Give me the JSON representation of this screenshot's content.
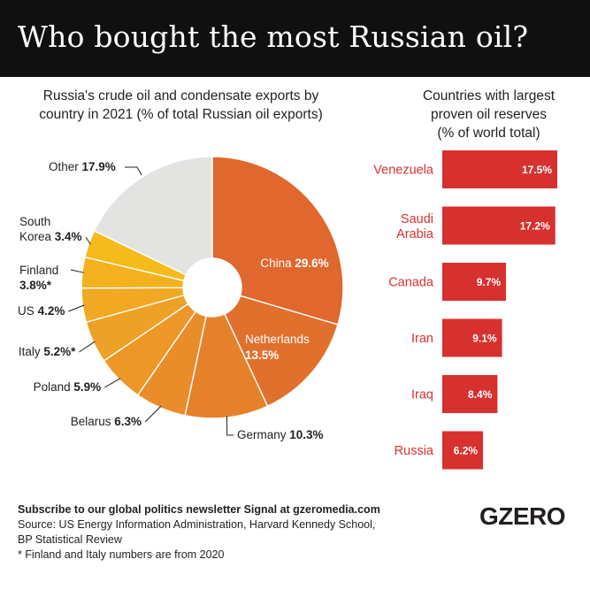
{
  "title": "Who bought the most Russian oil?",
  "pie_subtitle_line1": "Russia's crude oil and condensate exports by",
  "pie_subtitle_line2": "country in 2021 (% of total Russian oil exports)",
  "bar_subtitle_line1": "Countries with largest",
  "bar_subtitle_line2": "proven oil reserves",
  "bar_subtitle_line3": "(% of world total)",
  "footer": {
    "subscribe": "Subscribe to our global politics newsletter Signal at gzeromedia.com",
    "source_line1": "Source: US Energy Information Administration, Harvard Kennedy School,",
    "source_line2": "BP Statistical Review",
    "note": "* Finland and Italy numbers are from 2020"
  },
  "logo": "GZERO",
  "colors": {
    "bar": "#d7312f",
    "bar_label": "#d7312f",
    "other": "#e3e3e1",
    "header_bg": "#101010"
  },
  "chart_data": [
    {
      "type": "pie",
      "donut": true,
      "title": "Russia's crude oil and condensate exports by country in 2021 (% of total Russian oil exports)",
      "slices": [
        {
          "name": "China",
          "value": 29.6,
          "value_label": "29.6%",
          "color": "#e0672d"
        },
        {
          "name": "Netherlands",
          "value": 13.5,
          "value_label": "13.5%",
          "color": "#e1702c"
        },
        {
          "name": "Germany",
          "value": 10.3,
          "value_label": "10.3%",
          "color": "#e6812b"
        },
        {
          "name": "Belarus",
          "value": 6.3,
          "value_label": "6.3%",
          "color": "#e98c2a"
        },
        {
          "name": "Poland",
          "value": 5.9,
          "value_label": "5.9%",
          "color": "#ec9728"
        },
        {
          "name": "Italy",
          "value": 5.2,
          "value_label": "5.2%*",
          "color": "#eea127"
        },
        {
          "name": "US",
          "value": 4.2,
          "value_label": "4.2%",
          "color": "#f1a923"
        },
        {
          "name": "Finland",
          "value": 3.8,
          "value_label": "3.8%*",
          "color": "#f3b11f"
        },
        {
          "name": "South Korea",
          "value": 3.4,
          "value_label": "3.4%",
          "color": "#f5bb1c"
        },
        {
          "name": "Other",
          "value": 17.9,
          "value_label": "17.9%",
          "color": "#e3e3e1"
        }
      ]
    },
    {
      "type": "bar",
      "orientation": "horizontal",
      "title": "Countries with largest proven oil reserves (% of world total)",
      "categories": [
        "Venezuela",
        "Saudi Arabia",
        "Canada",
        "Iran",
        "Iraq",
        "Russia"
      ],
      "values": [
        17.5,
        17.2,
        9.7,
        9.1,
        8.4,
        6.2
      ],
      "value_labels": [
        "17.5%",
        "17.2%",
        "9.7%",
        "9.1%",
        "8.4%",
        "6.2%"
      ]
    }
  ]
}
